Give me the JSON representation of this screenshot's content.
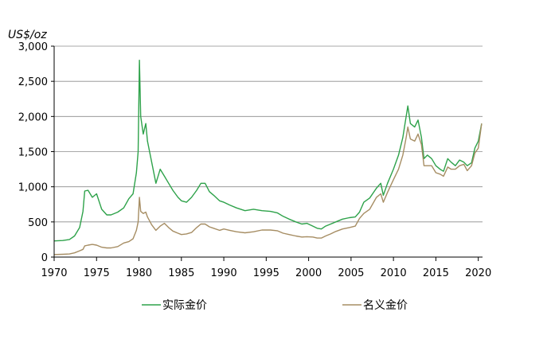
{
  "chart_data": {
    "type": "line",
    "ylabel": "US$/oz",
    "ylim": [
      0,
      3000
    ],
    "xlim": [
      1970,
      2020.5
    ],
    "y_ticks": [
      "0",
      "500",
      "1,000",
      "1,500",
      "2,000",
      "2,500",
      "3,000"
    ],
    "x_ticks": [
      "1970",
      "1975",
      "1980",
      "1985",
      "1990",
      "1995",
      "2000",
      "2005",
      "2010",
      "2015",
      "2020"
    ],
    "grid": "horizontal",
    "legend_position": "bottom",
    "series": [
      {
        "name": "实际金价",
        "color": "#2ea24a",
        "x": [
          1970.0,
          1971.0,
          1971.8,
          1972.4,
          1973.0,
          1973.4,
          1973.6,
          1974.0,
          1974.5,
          1975.0,
          1975.6,
          1976.2,
          1976.7,
          1977.5,
          1978.2,
          1978.8,
          1979.3,
          1979.7,
          1979.9,
          1980.05,
          1980.2,
          1980.5,
          1980.8,
          1981.0,
          1981.5,
          1982.0,
          1982.5,
          1983.0,
          1983.5,
          1984.0,
          1984.6,
          1985.0,
          1985.6,
          1986.2,
          1986.8,
          1987.3,
          1987.8,
          1988.3,
          1988.8,
          1989.5,
          1990.0,
          1990.7,
          1991.5,
          1992.5,
          1993.5,
          1994.5,
          1995.5,
          1996.3,
          1997.0,
          1997.7,
          1998.5,
          1999.2,
          1999.8,
          2000.5,
          2001.0,
          2001.5,
          2002.0,
          2002.6,
          2003.2,
          2004.0,
          2004.8,
          2005.5,
          2006.0,
          2006.5,
          2007.2,
          2008.0,
          2008.5,
          2008.8,
          2009.3,
          2010.0,
          2010.6,
          2011.1,
          2011.5,
          2011.7,
          2012.0,
          2012.5,
          2012.9,
          2013.3,
          2013.6,
          2014.0,
          2014.5,
          2015.0,
          2015.5,
          2015.9,
          2016.4,
          2016.8,
          2017.3,
          2017.8,
          2018.3,
          2018.7,
          2019.2,
          2019.6,
          2020.0,
          2020.4
        ],
        "values": [
          230,
          235,
          250,
          300,
          420,
          650,
          940,
          950,
          850,
          900,
          680,
          600,
          600,
          640,
          700,
          830,
          900,
          1200,
          1500,
          2800,
          2000,
          1750,
          1900,
          1650,
          1350,
          1050,
          1250,
          1150,
          1050,
          950,
          850,
          800,
          780,
          850,
          950,
          1050,
          1050,
          930,
          880,
          800,
          780,
          740,
          700,
          660,
          680,
          660,
          650,
          630,
          580,
          540,
          500,
          470,
          480,
          440,
          410,
          400,
          440,
          470,
          500,
          540,
          560,
          570,
          640,
          780,
          840,
          980,
          1050,
          880,
          1050,
          1250,
          1450,
          1700,
          2000,
          2150,
          1900,
          1850,
          1950,
          1700,
          1400,
          1450,
          1400,
          1300,
          1250,
          1220,
          1400,
          1350,
          1300,
          1380,
          1350,
          1300,
          1340,
          1550,
          1650,
          1900
        ]
      },
      {
        "name": "名义金价",
        "color": "#a68d63",
        "x": [
          1970.0,
          1971.0,
          1971.8,
          1972.4,
          1973.0,
          1973.4,
          1973.6,
          1974.0,
          1974.5,
          1975.0,
          1975.6,
          1976.2,
          1976.7,
          1977.5,
          1978.2,
          1978.8,
          1979.3,
          1979.7,
          1979.9,
          1980.05,
          1980.2,
          1980.5,
          1980.8,
          1981.0,
          1981.5,
          1982.0,
          1982.5,
          1983.0,
          1983.5,
          1984.0,
          1984.6,
          1985.0,
          1985.6,
          1986.2,
          1986.8,
          1987.3,
          1987.8,
          1988.3,
          1988.8,
          1989.5,
          1990.0,
          1990.7,
          1991.5,
          1992.5,
          1993.5,
          1994.5,
          1995.5,
          1996.3,
          1997.0,
          1997.7,
          1998.5,
          1999.2,
          1999.8,
          2000.5,
          2001.0,
          2001.5,
          2002.0,
          2002.6,
          2003.2,
          2004.0,
          2004.8,
          2005.5,
          2006.0,
          2006.5,
          2007.2,
          2008.0,
          2008.5,
          2008.8,
          2009.3,
          2010.0,
          2010.6,
          2011.1,
          2011.5,
          2011.7,
          2012.0,
          2012.5,
          2012.9,
          2013.3,
          2013.6,
          2014.0,
          2014.5,
          2015.0,
          2015.5,
          2015.9,
          2016.4,
          2016.8,
          2017.3,
          2017.8,
          2018.3,
          2018.7,
          2019.2,
          2019.6,
          2020.0,
          2020.4
        ],
        "values": [
          36,
          40,
          44,
          60,
          90,
          110,
          160,
          170,
          180,
          170,
          140,
          130,
          130,
          150,
          200,
          220,
          260,
          380,
          500,
          850,
          650,
          620,
          640,
          570,
          460,
          380,
          440,
          480,
          420,
          370,
          340,
          320,
          330,
          350,
          420,
          470,
          470,
          430,
          410,
          380,
          400,
          380,
          360,
          345,
          360,
          385,
          385,
          375,
          340,
          320,
          300,
          285,
          290,
          285,
          270,
          270,
          300,
          330,
          365,
          400,
          420,
          440,
          550,
          620,
          680,
          850,
          900,
          780,
          920,
          1100,
          1250,
          1450,
          1700,
          1850,
          1680,
          1650,
          1750,
          1600,
          1300,
          1300,
          1300,
          1200,
          1180,
          1150,
          1280,
          1250,
          1250,
          1300,
          1320,
          1230,
          1300,
          1480,
          1550,
          1900
        ]
      }
    ]
  }
}
